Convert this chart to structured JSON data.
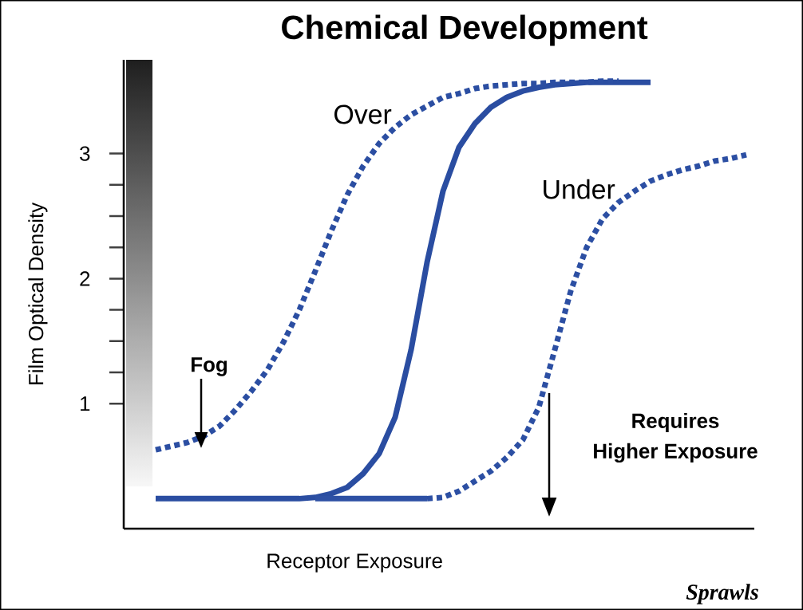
{
  "chart_data": {
    "type": "line",
    "title": "Chemical Development",
    "xlabel": "Receptor Exposure",
    "ylabel": "Film Optical Density",
    "categories": [
      null,
      null,
      null,
      null,
      null,
      null,
      null,
      null,
      null,
      null,
      null,
      null,
      null,
      null,
      null,
      null,
      null,
      null,
      null,
      null,
      null,
      null,
      null,
      null,
      null,
      null,
      null,
      null,
      null,
      null,
      null,
      null,
      null,
      null,
      null,
      null,
      null,
      null
    ],
    "series": [
      {
        "color": "#2a4da1",
        "line_style": "solid",
        "values": [
          0.24,
          0.24,
          0.24,
          0.24,
          0.24,
          0.24,
          0.24,
          0.24,
          0.24,
          0.24,
          0.25,
          0.28,
          0.33,
          0.44,
          0.6,
          0.89,
          1.43,
          2.13,
          2.7,
          3.05,
          3.24,
          3.37,
          3.45,
          3.5,
          3.53,
          3.55,
          3.56,
          3.57,
          3.57,
          3.57,
          3.57,
          3.57,
          null,
          null,
          null,
          null,
          null,
          null
        ]
      },
      {
        "name": "Over",
        "color": "#2b4ea2",
        "line_style": "dotted",
        "values": [
          0.63,
          0.66,
          0.69,
          0.74,
          0.82,
          0.95,
          1.1,
          1.27,
          1.49,
          1.75,
          2.06,
          2.38,
          2.67,
          2.9,
          3.08,
          3.21,
          3.31,
          3.38,
          3.45,
          3.48,
          3.52,
          3.54,
          3.55,
          3.56,
          3.56,
          3.57,
          3.57,
          3.57,
          3.58,
          3.58,
          null,
          null,
          null,
          null,
          null,
          null,
          null,
          null
        ]
      },
      {
        "name": "Under",
        "color": "#2c4fa3",
        "line_style": "dotted",
        "values": [
          null,
          null,
          null,
          null,
          null,
          null,
          null,
          null,
          null,
          null,
          null,
          null,
          null,
          null,
          null,
          null,
          null,
          0.24,
          0.25,
          0.3,
          0.38,
          0.46,
          0.57,
          0.71,
          0.97,
          1.43,
          1.9,
          2.25,
          2.48,
          2.61,
          2.7,
          2.78,
          2.83,
          2.87,
          2.9,
          2.94,
          2.96,
          2.99
        ]
      },
      {
        "color": "#2d50a4",
        "line_style": "solid",
        "values": [
          null,
          null,
          null,
          null,
          null,
          null,
          null,
          null,
          null,
          null,
          0.24,
          0.24,
          0.24,
          0.24,
          0.24,
          0.24,
          0.24,
          0.24,
          null,
          null,
          null,
          null,
          null,
          null,
          null,
          null,
          null,
          null,
          null,
          null,
          null,
          null,
          null,
          null,
          null,
          null,
          null,
          null
        ]
      }
    ],
    "ylim": [
      0,
      3.75
    ],
    "yticks": [
      1,
      2,
      3
    ],
    "tick_labels": "y",
    "marker": "none",
    "annotations": [
      "Fog",
      "Requires",
      "Higher Exposure",
      "Sprawls"
    ]
  }
}
